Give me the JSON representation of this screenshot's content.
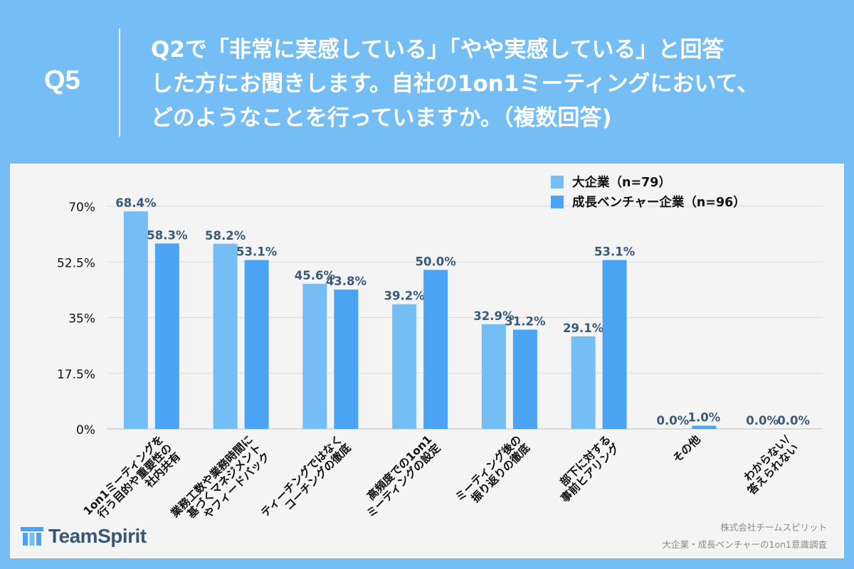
{
  "header": {
    "q_label": "Q5",
    "question_lines": [
      "Q2で「非常に実感している」「やや実感している」と回答",
      "した方にお聞きします。自社の1on1ミーティングにおいて、",
      "どのようなことを行っていますか。（複数回答)"
    ]
  },
  "chart_data": {
    "type": "bar",
    "categories": [
      [
        "1on1ミーティングを",
        "行う目的や重要性の",
        "社内共有"
      ],
      [
        "業務工数や業務時間に",
        "基づくマネジメント",
        "やフィードバック"
      ],
      [
        "ティーチングではなく",
        "コーチングの徹底"
      ],
      [
        "高頻度での1on1",
        "ミーティングの設定"
      ],
      [
        "ミーティング後の",
        "振り返りの徹底"
      ],
      [
        "部下に対する",
        "事前ヒアリング"
      ],
      [
        "その他"
      ],
      [
        "わからない/",
        "答えられない"
      ]
    ],
    "series": [
      {
        "name": "大企業（n=79）",
        "values": [
          68.4,
          58.2,
          45.6,
          39.2,
          32.9,
          29.1,
          0.0,
          0.0
        ],
        "labels": [
          "68.4%",
          "58.2%",
          "45.6%",
          "39.2%",
          "32.9%",
          "29.1%",
          "0.0%",
          "0.0%"
        ],
        "color": "#74bef5"
      },
      {
        "name": "成長ベンチャー企業（n=96）",
        "values": [
          58.3,
          53.1,
          43.8,
          50.0,
          31.2,
          53.1,
          1.0,
          0.0
        ],
        "labels": [
          "58.3%",
          "53.1%",
          "43.8%",
          "50.0%",
          "31.2%",
          "53.1%",
          "1.0%",
          "0.0%"
        ],
        "color": "#4aa3f3"
      }
    ],
    "y_ticks": [
      {
        "value": 0,
        "label": "0%"
      },
      {
        "value": 17.5,
        "label": "17.5%"
      },
      {
        "value": 35,
        "label": "35%"
      },
      {
        "value": 52.5,
        "label": "52.5%"
      },
      {
        "value": 70,
        "label": "70%"
      }
    ],
    "ylim": [
      0,
      70
    ],
    "grid": true,
    "legend_position": "top-right",
    "label_color": "#3a5a7a"
  },
  "footer": {
    "logo": "TeamSpirit",
    "credit_lines": [
      "株式会社チームスピリット",
      "大企業・成長ベンチャーの1on1意識調査"
    ]
  }
}
